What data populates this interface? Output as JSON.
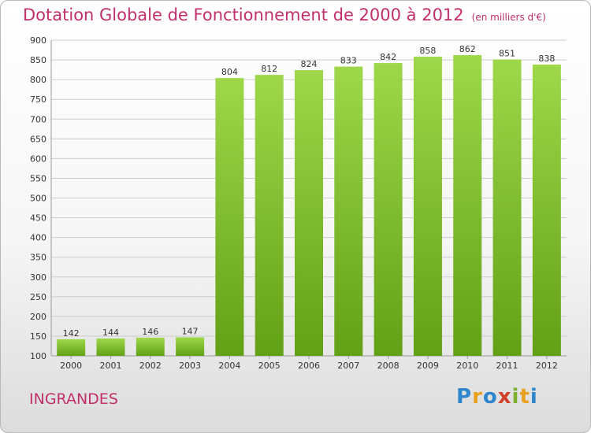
{
  "header": {
    "title": "Dotation Globale de Fonctionnement de 2000 à 2012",
    "unit": "(en milliers d'€)"
  },
  "footer": {
    "city": "INGRANDES",
    "logo_text": "Proxiti"
  },
  "colors": {
    "bar_light": "#9ed84a",
    "bar_dark": "#62a015",
    "title": "#c0306a",
    "grid": "#cccccc"
  },
  "chart_data": {
    "type": "bar",
    "title": "Dotation Globale de Fonctionnement de 2000 à 2012",
    "subtitle": "(en milliers d'€)",
    "xlabel": "",
    "ylabel": "",
    "categories": [
      "2000",
      "2001",
      "2002",
      "2003",
      "2004",
      "2005",
      "2006",
      "2007",
      "2008",
      "2009",
      "2010",
      "2011",
      "2012"
    ],
    "values": [
      142,
      144,
      146,
      147,
      804,
      812,
      824,
      833,
      842,
      858,
      862,
      851,
      838
    ],
    "ylim": [
      100,
      900
    ],
    "yticks": [
      100,
      150,
      200,
      250,
      300,
      350,
      400,
      450,
      500,
      550,
      600,
      650,
      700,
      750,
      800,
      850,
      900
    ],
    "grid": true,
    "legend": "none"
  }
}
